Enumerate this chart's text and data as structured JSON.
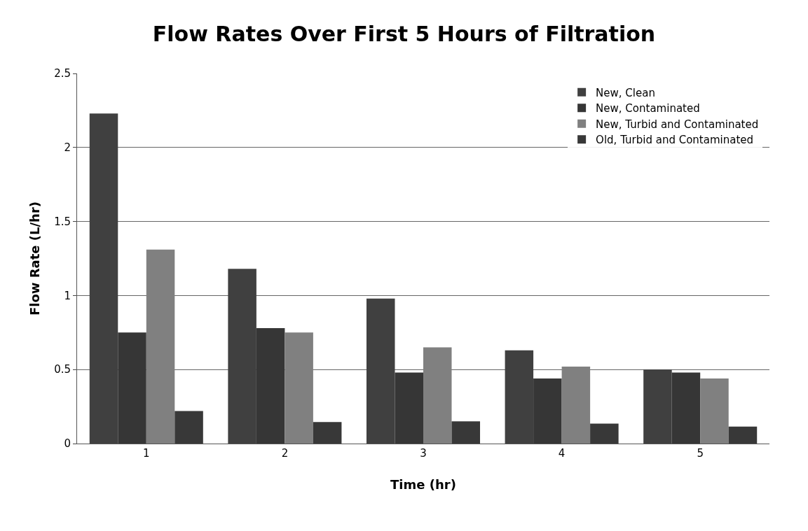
{
  "chart_data": {
    "type": "bar",
    "title": "Flow Rates Over First 5 Hours of Filtration",
    "xlabel": "Time (hr)",
    "ylabel": "Flow Rate (L/hr)",
    "categories": [
      "1",
      "2",
      "3",
      "4",
      "5"
    ],
    "series": [
      {
        "name": "New, Clean",
        "color": "#404040",
        "values": [
          2.23,
          1.18,
          0.98,
          0.63,
          0.5
        ]
      },
      {
        "name": "New, Contaminated",
        "color": "#363636",
        "values": [
          0.75,
          0.78,
          0.48,
          0.44,
          0.48
        ]
      },
      {
        "name": "New, Turbid and Contaminated",
        "color": "#808080",
        "values": [
          1.31,
          0.75,
          0.65,
          0.52,
          0.44
        ]
      },
      {
        "name": "Old, Turbid and Contaminated",
        "color": "#383838",
        "values": [
          0.22,
          0.145,
          0.15,
          0.135,
          0.115
        ]
      }
    ],
    "ylim": [
      0,
      2.5
    ],
    "yticks": [
      0,
      0.5,
      1,
      1.5,
      2,
      2.5
    ],
    "grid": "y",
    "legend": "top right"
  }
}
